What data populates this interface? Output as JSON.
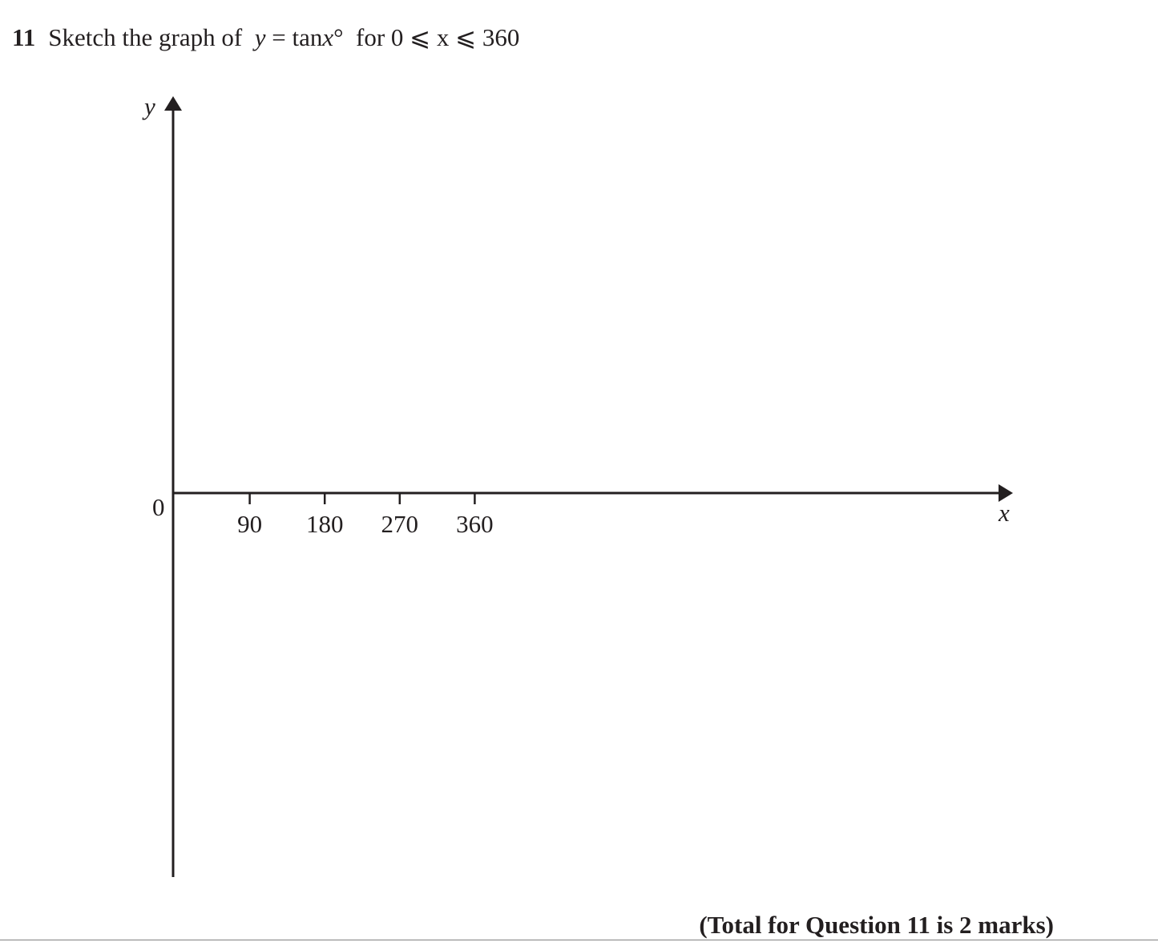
{
  "question": {
    "number": "11",
    "text_before": "Sketch the graph of",
    "math_var": "y",
    "math_eq": " = tan",
    "math_arg": "x",
    "math_deg": "°",
    "text_for": "for 0 ⩽ ",
    "range_var": "x",
    "range_end": " ⩽ 360"
  },
  "chart_data": {
    "type": "line",
    "title": "",
    "xlabel": "x",
    "ylabel": "y",
    "origin_label": "0",
    "x_ticks": [
      90,
      180,
      270,
      360
    ],
    "x_tick_labels": [
      "90",
      "180",
      "270",
      "360"
    ],
    "series": []
  },
  "footer": {
    "total": "(Total for Question 11 is 2 marks)"
  }
}
